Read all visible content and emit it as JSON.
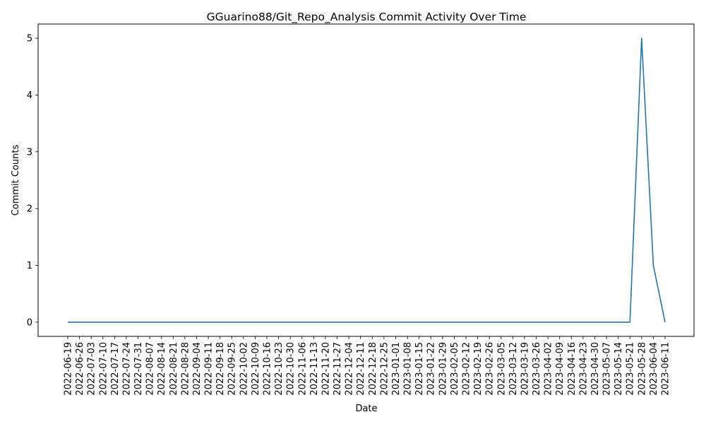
{
  "chart_data": {
    "type": "line",
    "title": "GGuarino88/Git_Repo_Analysis Commit Activity Over Time",
    "xlabel": "Date",
    "ylabel": "Commit Counts",
    "x": [
      "2022-06-19",
      "2022-06-26",
      "2022-07-03",
      "2022-07-10",
      "2022-07-17",
      "2022-07-24",
      "2022-07-31",
      "2022-08-07",
      "2022-08-14",
      "2022-08-21",
      "2022-08-28",
      "2022-09-04",
      "2022-09-11",
      "2022-09-18",
      "2022-09-25",
      "2022-10-02",
      "2022-10-09",
      "2022-10-16",
      "2022-10-23",
      "2022-10-30",
      "2022-11-06",
      "2022-11-13",
      "2022-11-20",
      "2022-11-27",
      "2022-12-04",
      "2022-12-11",
      "2022-12-18",
      "2022-12-25",
      "2023-01-01",
      "2023-01-08",
      "2023-01-15",
      "2023-01-22",
      "2023-01-29",
      "2023-02-05",
      "2023-02-12",
      "2023-02-19",
      "2023-02-26",
      "2023-03-05",
      "2023-03-12",
      "2023-03-19",
      "2023-03-26",
      "2023-04-02",
      "2023-04-09",
      "2023-04-16",
      "2023-04-23",
      "2023-04-30",
      "2023-05-07",
      "2023-05-14",
      "2023-05-21",
      "2023-05-28",
      "2023-06-04",
      "2023-06-11"
    ],
    "series": [
      {
        "values": [
          0,
          0,
          0,
          0,
          0,
          0,
          0,
          0,
          0,
          0,
          0,
          0,
          0,
          0,
          0,
          0,
          0,
          0,
          0,
          0,
          0,
          0,
          0,
          0,
          0,
          0,
          0,
          0,
          0,
          0,
          0,
          0,
          0,
          0,
          0,
          0,
          0,
          0,
          0,
          0,
          0,
          0,
          0,
          0,
          0,
          0,
          0,
          0,
          0,
          5,
          1,
          0
        ]
      }
    ],
    "yticks": [
      0,
      1,
      2,
      3,
      4,
      5
    ],
    "ylim": [
      -0.25,
      5.25
    ],
    "grid": false,
    "color": "#1f77b4"
  }
}
